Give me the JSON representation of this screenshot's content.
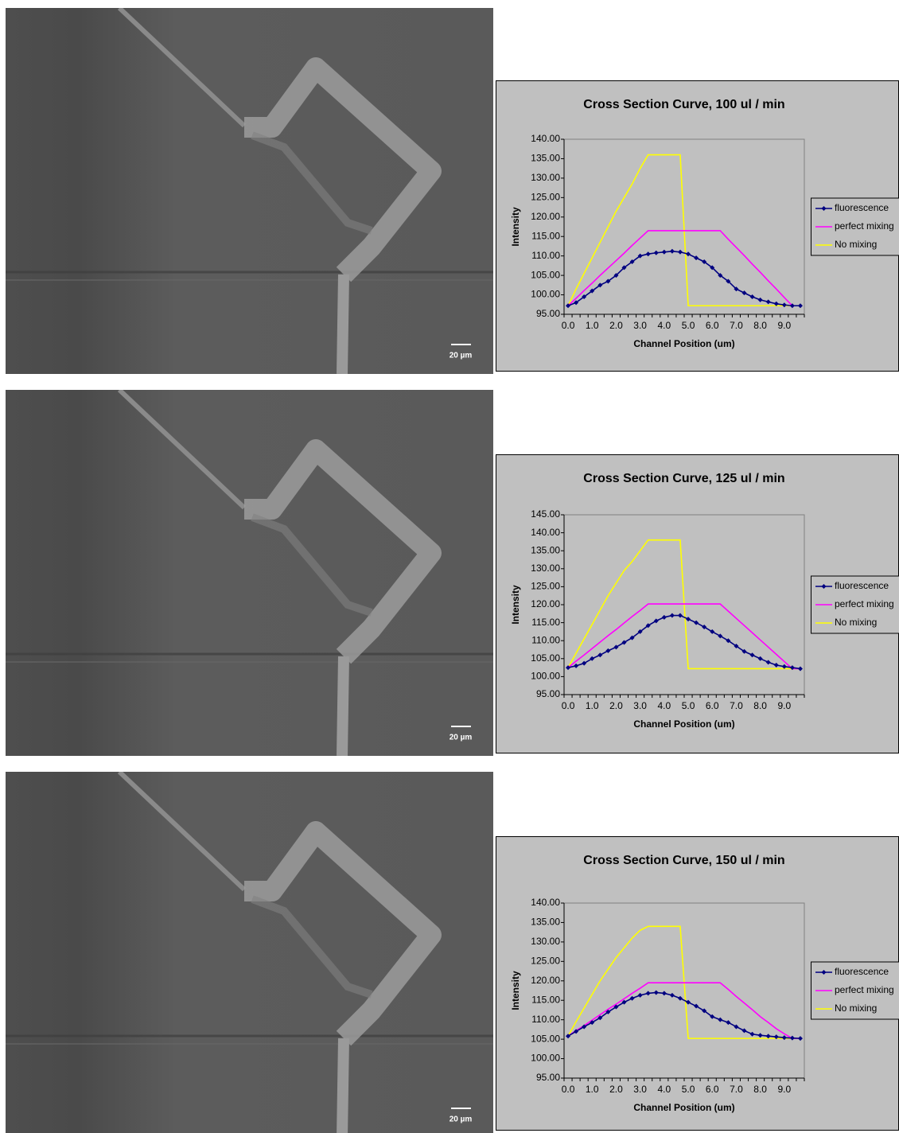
{
  "images": [
    {
      "scale_bar": "20 µm"
    },
    {
      "scale_bar": "20 µm"
    },
    {
      "scale_bar": "20 µm"
    }
  ],
  "chart_data": [
    {
      "type": "line",
      "title": "Cross Section Curve, 100 ul / min",
      "x_label": "Channel Position (um)",
      "y_label": "Intensity",
      "categories": [
        "0.0",
        null,
        null,
        "1.0",
        null,
        null,
        "2.0",
        null,
        null,
        "3.0",
        null,
        null,
        "4.0",
        null,
        null,
        "5.0",
        null,
        null,
        "6.0",
        null,
        null,
        "7.0",
        null,
        null,
        "8.0",
        null,
        null,
        "9.0",
        null,
        null
      ],
      "ylim": [
        95,
        140
      ],
      "yticks": [
        {
          "value": 95,
          "label": "95.00"
        },
        {
          "value": 100,
          "label": "100.00"
        },
        {
          "value": 105,
          "label": "105.00"
        },
        {
          "value": 110,
          "label": "110.00"
        },
        {
          "value": 115,
          "label": "115.00"
        },
        {
          "value": 120,
          "label": "120.00"
        },
        {
          "value": 125,
          "label": "125.00"
        },
        {
          "value": 130,
          "label": "130.00"
        },
        {
          "value": 135,
          "label": "135.00"
        },
        {
          "value": 140,
          "label": "140.00"
        }
      ],
      "legend": "right",
      "series": [
        {
          "name": "fluorescence",
          "color": "#000080",
          "marker": "diamond",
          "values": [
            97.2,
            98,
            99.5,
            101,
            102.5,
            103.5,
            105,
            107,
            108.5,
            110,
            110.5,
            110.8,
            111,
            111.2,
            111,
            110.5,
            109.5,
            108.5,
            107,
            105,
            103.5,
            101.5,
            100.5,
            99.5,
            98.7,
            98.2,
            97.7,
            97.4,
            97.2,
            97.2
          ]
        },
        {
          "name": "perfect mixing",
          "color": "#ff00ff",
          "values": [
            97.2,
            99.1,
            101.1,
            103,
            105,
            106.9,
            108.8,
            110.7,
            112.7,
            114.6,
            116.5,
            116.5,
            116.5,
            116.5,
            116.5,
            116.5,
            116.5,
            116.5,
            116.5,
            116.5,
            114.3,
            112.2,
            110.1,
            107.9,
            105.8,
            103.6,
            101.5,
            99.3,
            97.2,
            97.2
          ]
        },
        {
          "name": "No mixing",
          "color": "#ffff00",
          "values": [
            97.2,
            101.5,
            105.5,
            109.5,
            113.5,
            117.5,
            121.5,
            125,
            128.5,
            132.5,
            136,
            136,
            136,
            136,
            136,
            97.2,
            97.2,
            97.2,
            97.2,
            97.2,
            97.2,
            97.2,
            97.2,
            97.2,
            97.2,
            97.2,
            97.2,
            97.2,
            97.2,
            97.2
          ]
        }
      ]
    },
    {
      "type": "line",
      "title": "Cross Section Curve, 125 ul / min",
      "x_label": "Channel Position (um)",
      "y_label": "Intensity",
      "categories": [
        "0.0",
        null,
        null,
        "1.0",
        null,
        null,
        "2.0",
        null,
        null,
        "3.0",
        null,
        null,
        "4.0",
        null,
        null,
        "5.0",
        null,
        null,
        "6.0",
        null,
        null,
        "7.0",
        null,
        null,
        "8.0",
        null,
        null,
        "9.0",
        null,
        null
      ],
      "ylim": [
        95,
        145
      ],
      "yticks": [
        {
          "value": 95,
          "label": "95.00"
        },
        {
          "value": 100,
          "label": "100.00"
        },
        {
          "value": 105,
          "label": "105.00"
        },
        {
          "value": 110,
          "label": "110.00"
        },
        {
          "value": 115,
          "label": "115.00"
        },
        {
          "value": 120,
          "label": "120.00"
        },
        {
          "value": 125,
          "label": "125.00"
        },
        {
          "value": 130,
          "label": "130.00"
        },
        {
          "value": 135,
          "label": "135.00"
        },
        {
          "value": 140,
          "label": "140.00"
        },
        {
          "value": 145,
          "label": "145.00"
        }
      ],
      "legend": "right",
      "series": [
        {
          "name": "fluorescence",
          "color": "#000080",
          "marker": "diamond",
          "values": [
            102.5,
            103,
            103.7,
            105,
            106,
            107.2,
            108.2,
            109.5,
            110.8,
            112.5,
            114.2,
            115.5,
            116.5,
            117,
            117,
            116,
            115,
            113.8,
            112.5,
            111.3,
            110,
            108.5,
            107,
            106,
            105,
            104,
            103.2,
            102.8,
            102.5,
            102.2
          ]
        },
        {
          "name": "perfect mixing",
          "color": "#ff00ff",
          "values": [
            102.5,
            104.3,
            106,
            107.8,
            109.6,
            111.4,
            113.1,
            114.9,
            116.7,
            118.4,
            120.2,
            120.2,
            120.2,
            120.2,
            120.2,
            120.2,
            120.2,
            120.2,
            120.2,
            120.2,
            118.2,
            116.2,
            114.2,
            112.2,
            110.2,
            108.2,
            106.2,
            104.2,
            102.2,
            102.2
          ]
        },
        {
          "name": "No mixing",
          "color": "#ffff00",
          "values": [
            102.5,
            106.5,
            110.5,
            114.5,
            118.5,
            122.5,
            126,
            129.5,
            132,
            135,
            138,
            138,
            138,
            138,
            138,
            102.2,
            102.2,
            102.2,
            102.2,
            102.2,
            102.2,
            102.2,
            102.2,
            102.2,
            102.2,
            102.2,
            102.2,
            102.2,
            102.2,
            102.2
          ]
        }
      ]
    },
    {
      "type": "line",
      "title": "Cross Section Curve, 150 ul / min",
      "x_label": "Channel Position (um)",
      "y_label": "Intensity",
      "categories": [
        "0.0",
        null,
        null,
        "1.0",
        null,
        null,
        "2.0",
        null,
        null,
        "3.0",
        null,
        null,
        "4.0",
        null,
        null,
        "5.0",
        null,
        null,
        "6.0",
        null,
        null,
        "7.0",
        null,
        null,
        "8.0",
        null,
        null,
        "9.0",
        null,
        null
      ],
      "ylim": [
        95,
        140
      ],
      "yticks": [
        {
          "value": 95,
          "label": "95.00"
        },
        {
          "value": 100,
          "label": "100.00"
        },
        {
          "value": 105,
          "label": "105.00"
        },
        {
          "value": 110,
          "label": "110.00"
        },
        {
          "value": 115,
          "label": "115.00"
        },
        {
          "value": 120,
          "label": "120.00"
        },
        {
          "value": 125,
          "label": "125.00"
        },
        {
          "value": 130,
          "label": "130.00"
        },
        {
          "value": 135,
          "label": "135.00"
        },
        {
          "value": 140,
          "label": "140.00"
        }
      ],
      "legend": "right",
      "series": [
        {
          "name": "fluorescence",
          "color": "#000080",
          "marker": "diamond",
          "values": [
            105.8,
            107,
            108.2,
            109.3,
            110.5,
            112,
            113.3,
            114.5,
            115.5,
            116.3,
            116.8,
            117,
            116.8,
            116.3,
            115.5,
            114.5,
            113.5,
            112.3,
            110.8,
            110,
            109.3,
            108.2,
            107.2,
            106.3,
            106,
            105.8,
            105.6,
            105.4,
            105.3,
            105.2
          ]
        },
        {
          "name": "perfect mixing",
          "color": "#ff00ff",
          "values": [
            105.8,
            107.2,
            108.5,
            109.9,
            111.3,
            112.7,
            114,
            115.4,
            116.8,
            118.1,
            119.5,
            119.5,
            119.5,
            119.5,
            119.5,
            119.5,
            119.5,
            119.5,
            119.5,
            119.5,
            117.8,
            116,
            114.3,
            112.6,
            110.8,
            109.3,
            107.7,
            106.4,
            105.2,
            105.2
          ]
        },
        {
          "name": "No mixing",
          "color": "#ffff00",
          "values": [
            105.8,
            109.5,
            113,
            116.5,
            120,
            123,
            126,
            128.5,
            131,
            133,
            134,
            134,
            134,
            134,
            134,
            105.2,
            105.2,
            105.2,
            105.2,
            105.2,
            105.2,
            105.2,
            105.2,
            105.2,
            105.2,
            105.2,
            105.2,
            105.2,
            105.2,
            105.2
          ]
        }
      ]
    }
  ]
}
